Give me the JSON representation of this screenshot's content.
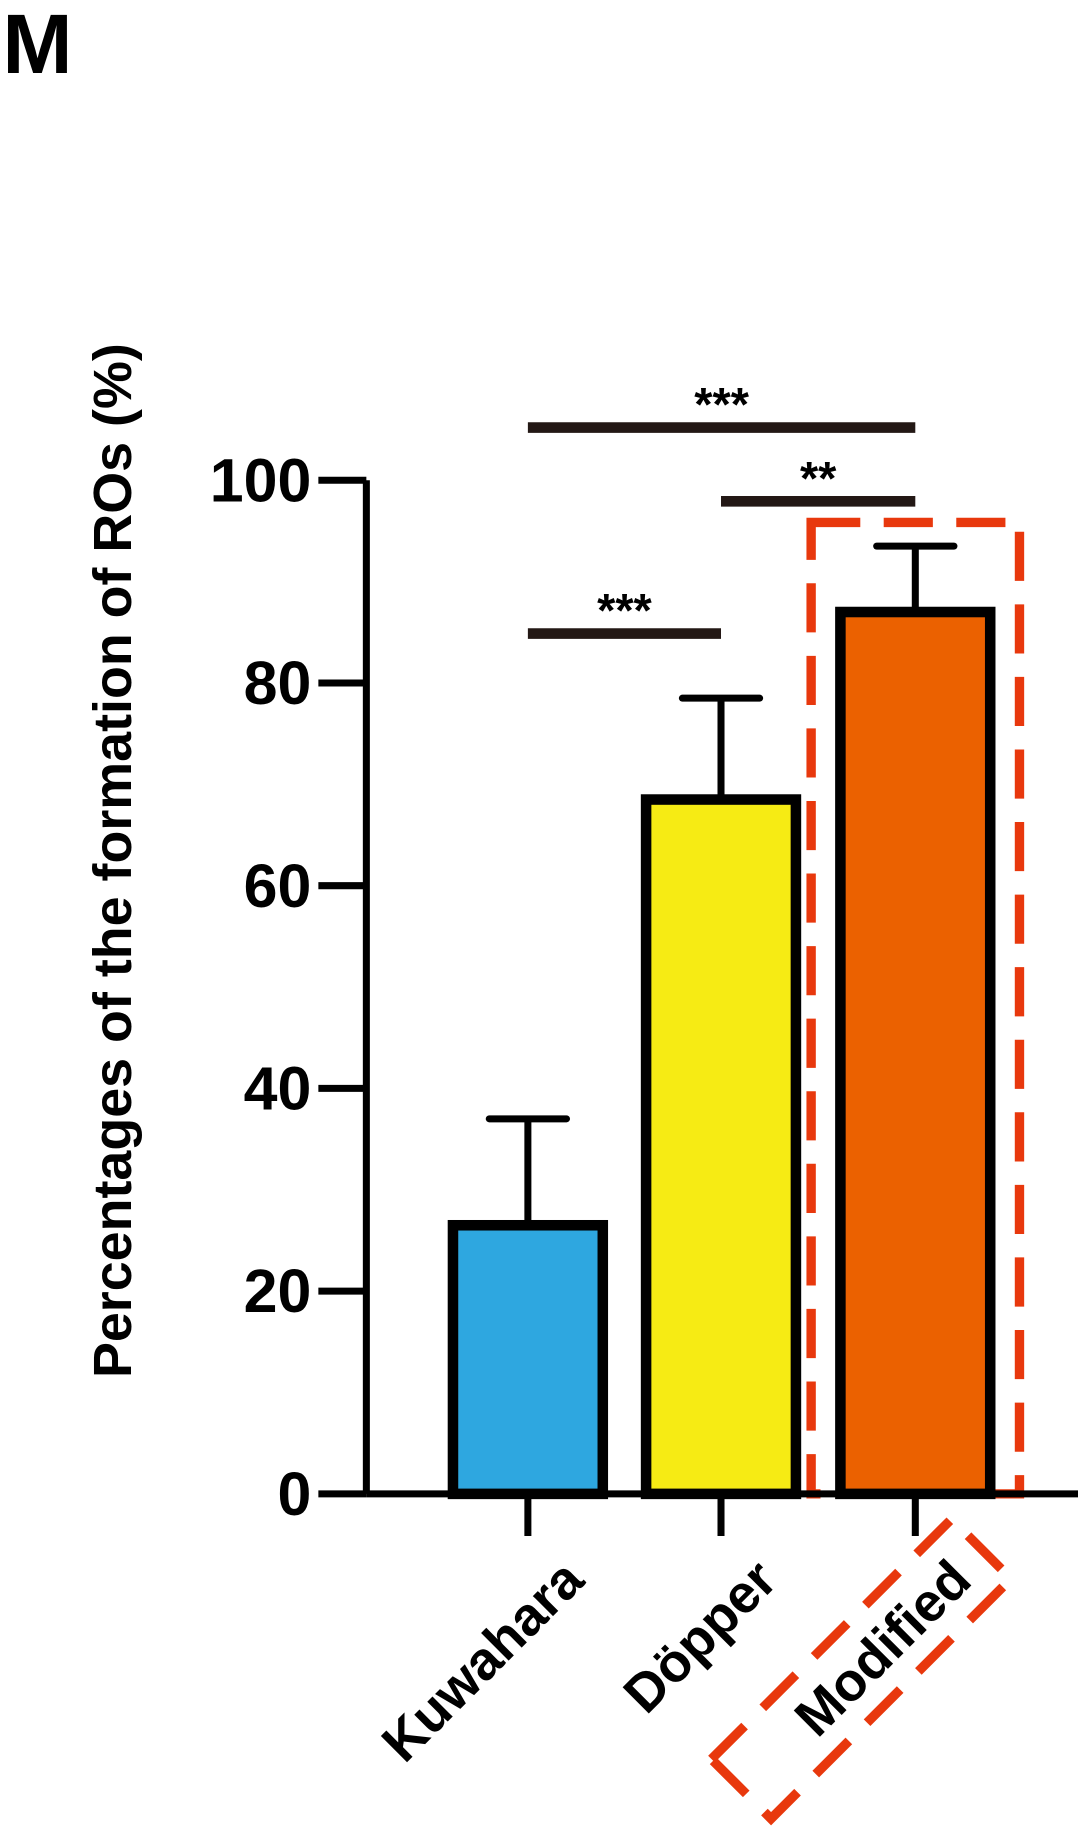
{
  "panel_label": "M",
  "chart_data": {
    "type": "bar",
    "ylabel": "Percentages of the formation of ROs (%)",
    "categories": [
      "Kuwahara",
      "Döpper",
      "Modified"
    ],
    "values": [
      26.5,
      68.5,
      87
    ],
    "errors": [
      10.5,
      10,
      6.5
    ],
    "colors": [
      "#2ea7e0",
      "#f6eb14",
      "#eb6100"
    ],
    "ylim": [
      0,
      100
    ],
    "yticks": [
      0,
      20,
      40,
      60,
      80,
      100
    ],
    "annotations": [
      "***",
      "**",
      "***"
    ],
    "highlight_color": "#e8380d"
  }
}
